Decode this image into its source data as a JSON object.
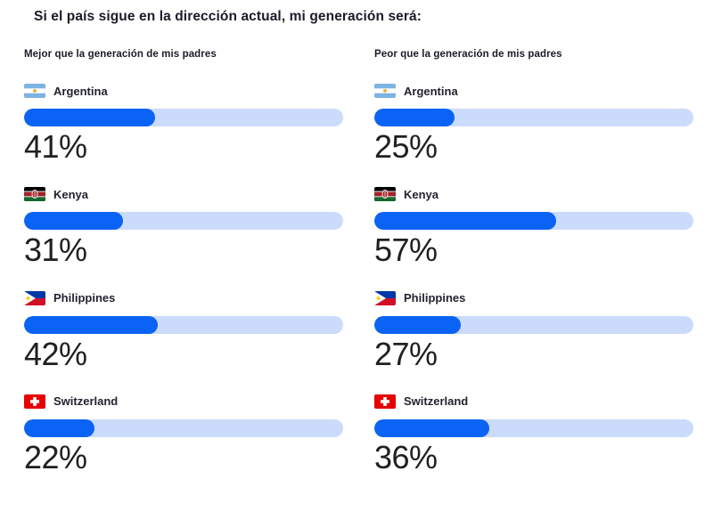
{
  "title": "Si el país sigue en la dirección actual, mi generación será:",
  "colors": {
    "bar_fill": "#0b63f5",
    "bar_track": "#cbdbfc",
    "text_dark": "#1b1b28"
  },
  "chart_data": {
    "type": "bar",
    "orientation": "horizontal",
    "unit": "%",
    "xlim": [
      0,
      100
    ],
    "grid": false,
    "legend_position": "column-headers",
    "categories": [
      "Argentina",
      "Kenya",
      "Philippines",
      "Switzerland"
    ],
    "series": [
      {
        "name": "Mejor que la generación de mis padres",
        "values": [
          41,
          31,
          42,
          22
        ]
      },
      {
        "name": "Peor que la generación de mis padres",
        "values": [
          25,
          57,
          27,
          36
        ]
      }
    ],
    "panels": [
      {
        "header": "Mejor que la generación de mis padres",
        "rows": [
          {
            "country": "Argentina",
            "flag": "argentina-flag",
            "value": 41,
            "label": "41%"
          },
          {
            "country": "Kenya",
            "flag": "kenya-flag",
            "value": 31,
            "label": "31%"
          },
          {
            "country": "Philippines",
            "flag": "philippines-flag",
            "value": 42,
            "label": "42%"
          },
          {
            "country": "Switzerland",
            "flag": "switzerland-flag",
            "value": 22,
            "label": "22%"
          }
        ]
      },
      {
        "header": "Peor que la generación de mis padres",
        "rows": [
          {
            "country": "Argentina",
            "flag": "argentina-flag",
            "value": 25,
            "label": "25%"
          },
          {
            "country": "Kenya",
            "flag": "kenya-flag",
            "value": 57,
            "label": "57%"
          },
          {
            "country": "Philippines",
            "flag": "philippines-flag",
            "value": 27,
            "label": "27%"
          },
          {
            "country": "Switzerland",
            "flag": "switzerland-flag",
            "value": 36,
            "label": "36%"
          }
        ]
      }
    ]
  }
}
